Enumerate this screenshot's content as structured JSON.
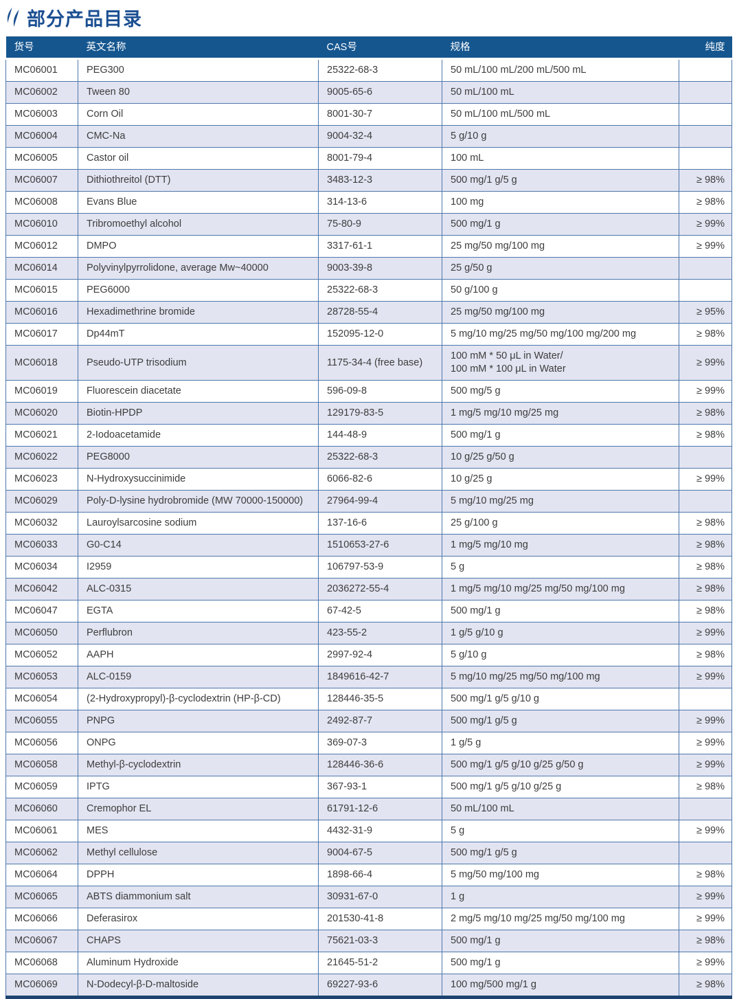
{
  "page": {
    "title": "部分产品目录"
  },
  "colors": {
    "title_accent": "#1b4f92",
    "header_bg": "#15568f",
    "header_text": "#ffffff",
    "alt_row_bg": "#e2e4f1",
    "cell_border": "#4d77ac",
    "bottom_bar": "#1d4370",
    "body_text": "#3d3d3d"
  },
  "table": {
    "columns": [
      "货号",
      "英文名称",
      "CAS号",
      "规格",
      "纯度"
    ],
    "rows": [
      {
        "id": "MC06001",
        "name": "PEG300",
        "cas": "25322-68-3",
        "spec": "50 mL/100 mL/200 mL/500 mL",
        "purity": ""
      },
      {
        "id": "MC06002",
        "name": "Tween 80",
        "cas": "9005-65-6",
        "spec": "50 mL/100 mL",
        "purity": ""
      },
      {
        "id": "MC06003",
        "name": "Corn Oil",
        "cas": "8001-30-7",
        "spec": "50 mL/100 mL/500 mL",
        "purity": ""
      },
      {
        "id": "MC06004",
        "name": "CMC-Na",
        "cas": "9004-32-4",
        "spec": "5 g/10 g",
        "purity": ""
      },
      {
        "id": "MC06005",
        "name": "Castor oil",
        "cas": "8001-79-4",
        "spec": "100 mL",
        "purity": ""
      },
      {
        "id": "MC06007",
        "name": "Dithiothreitol (DTT)",
        "cas": "3483-12-3",
        "spec": "500 mg/1 g/5 g",
        "purity": "≥ 98%"
      },
      {
        "id": "MC06008",
        "name": "Evans Blue",
        "cas": "314-13-6",
        "spec": "100 mg",
        "purity": "≥ 98%"
      },
      {
        "id": "MC06010",
        "name": "Tribromoethyl alcohol",
        "cas": "75-80-9",
        "spec": "500 mg/1 g",
        "purity": "≥ 99%"
      },
      {
        "id": "MC06012",
        "name": "DMPO",
        "cas": "3317-61-1",
        "spec": "25 mg/50 mg/100 mg",
        "purity": "≥ 99%"
      },
      {
        "id": "MC06014",
        "name": "Polyvinylpyrrolidone, average Mw~40000",
        "cas": "9003-39-8",
        "spec": "25 g/50 g",
        "purity": ""
      },
      {
        "id": "MC06015",
        "name": "PEG6000",
        "cas": "25322-68-3",
        "spec": "50 g/100 g",
        "purity": ""
      },
      {
        "id": "MC06016",
        "name": "Hexadimethrine bromide",
        "cas": "28728-55-4",
        "spec": "25 mg/50 mg/100 mg",
        "purity": "≥ 95%"
      },
      {
        "id": "MC06017",
        "name": "Dp44mT",
        "cas": "152095-12-0",
        "spec": "5 mg/10 mg/25 mg/50 mg/100 mg/200 mg",
        "purity": "≥ 98%"
      },
      {
        "id": "MC06018",
        "name": "Pseudo-UTP trisodium",
        "cas": "1175-34-4 (free base)",
        "spec": "100 mM * 50 μL in Water/\n100 mM * 100 μL in Water",
        "purity": "≥ 99%"
      },
      {
        "id": "MC06019",
        "name": "Fluorescein diacetate",
        "cas": "596-09-8",
        "spec": "500 mg/5 g",
        "purity": "≥ 99%"
      },
      {
        "id": "MC06020",
        "name": "Biotin-HPDP",
        "cas": "129179-83-5",
        "spec": "1 mg/5 mg/10 mg/25 mg",
        "purity": "≥ 98%"
      },
      {
        "id": "MC06021",
        "name": "2-Iodoacetamide",
        "cas": "144-48-9",
        "spec": "500 mg/1 g",
        "purity": "≥ 98%"
      },
      {
        "id": "MC06022",
        "name": "PEG8000",
        "cas": "25322-68-3",
        "spec": "10 g/25 g/50 g",
        "purity": ""
      },
      {
        "id": "MC06023",
        "name": "N-Hydroxysuccinimide",
        "cas": "6066-82-6",
        "spec": "10 g/25 g",
        "purity": "≥ 99%"
      },
      {
        "id": "MC06029",
        "name": "Poly-D-lysine hydrobromide (MW 70000-150000)",
        "cas": "27964-99-4",
        "spec": "5 mg/10 mg/25 mg",
        "purity": ""
      },
      {
        "id": "MC06032",
        "name": "Lauroylsarcosine sodium",
        "cas": "137-16-6",
        "spec": "25 g/100 g",
        "purity": "≥ 98%"
      },
      {
        "id": "MC06033",
        "name": "G0-C14",
        "cas": "1510653-27-6",
        "spec": "1 mg/5 mg/10 mg",
        "purity": "≥ 98%"
      },
      {
        "id": "MC06034",
        "name": "I2959",
        "cas": "106797-53-9",
        "spec": "5 g",
        "purity": "≥ 98%"
      },
      {
        "id": "MC06042",
        "name": "ALC-0315",
        "cas": "2036272-55-4",
        "spec": "1 mg/5 mg/10 mg/25 mg/50 mg/100 mg",
        "purity": "≥ 98%"
      },
      {
        "id": "MC06047",
        "name": "EGTA",
        "cas": "67-42-5",
        "spec": "500 mg/1 g",
        "purity": "≥ 98%"
      },
      {
        "id": "MC06050",
        "name": "Perflubron",
        "cas": "423-55-2",
        "spec": "1 g/5 g/10 g",
        "purity": "≥ 99%"
      },
      {
        "id": "MC06052",
        "name": "AAPH",
        "cas": "2997-92-4",
        "spec": "5 g/10 g",
        "purity": "≥ 98%"
      },
      {
        "id": "MC06053",
        "name": "ALC-0159",
        "cas": "1849616-42-7",
        "spec": "5 mg/10 mg/25 mg/50 mg/100 mg",
        "purity": "≥ 99%"
      },
      {
        "id": "MC06054",
        "name": "(2-Hydroxypropyl)-β-cyclodextrin (HP-β-CD)",
        "cas": "128446-35-5",
        "spec": "500 mg/1 g/5 g/10 g",
        "purity": ""
      },
      {
        "id": "MC06055",
        "name": "PNPG",
        "cas": "2492-87-7",
        "spec": "500 mg/1 g/5 g",
        "purity": "≥ 99%"
      },
      {
        "id": "MC06056",
        "name": "ONPG",
        "cas": "369-07-3",
        "spec": "1 g/5 g",
        "purity": "≥ 99%"
      },
      {
        "id": "MC06058",
        "name": "Methyl-β-cyclodextrin",
        "cas": "128446-36-6",
        "spec": "500 mg/1 g/5 g/10 g/25 g/50 g",
        "purity": "≥ 99%"
      },
      {
        "id": "MC06059",
        "name": "IPTG",
        "cas": "367-93-1",
        "spec": "500 mg/1 g/5 g/10 g/25 g",
        "purity": "≥ 98%"
      },
      {
        "id": "MC06060",
        "name": "Cremophor EL",
        "cas": "61791-12-6",
        "spec": "50 mL/100 mL",
        "purity": ""
      },
      {
        "id": "MC06061",
        "name": "MES",
        "cas": "4432-31-9",
        "spec": "5 g",
        "purity": "≥ 99%"
      },
      {
        "id": "MC06062",
        "name": "Methyl cellulose",
        "cas": "9004-67-5",
        "spec": "500 mg/1 g/5 g",
        "purity": ""
      },
      {
        "id": "MC06064",
        "name": "DPPH",
        "cas": "1898-66-4",
        "spec": "5 mg/50 mg/100 mg",
        "purity": "≥ 98%"
      },
      {
        "id": "MC06065",
        "name": "ABTS diammonium salt",
        "cas": "30931-67-0",
        "spec": "1 g",
        "purity": "≥ 99%"
      },
      {
        "id": "MC06066",
        "name": "Deferasirox",
        "cas": "201530-41-8",
        "spec": "2 mg/5 mg/10 mg/25 mg/50 mg/100 mg",
        "purity": "≥ 99%"
      },
      {
        "id": "MC06067",
        "name": "CHAPS",
        "cas": "75621-03-3",
        "spec": "500 mg/1 g",
        "purity": "≥ 98%"
      },
      {
        "id": "MC06068",
        "name": "Aluminum Hydroxide",
        "cas": "21645-51-2",
        "spec": "500 mg/1 g",
        "purity": "≥ 99%"
      },
      {
        "id": "MC06069",
        "name": "N-Dodecyl-β-D-maltoside",
        "cas": "69227-93-6",
        "spec": "100 mg/500 mg/1 g",
        "purity": "≥ 98%"
      }
    ]
  }
}
